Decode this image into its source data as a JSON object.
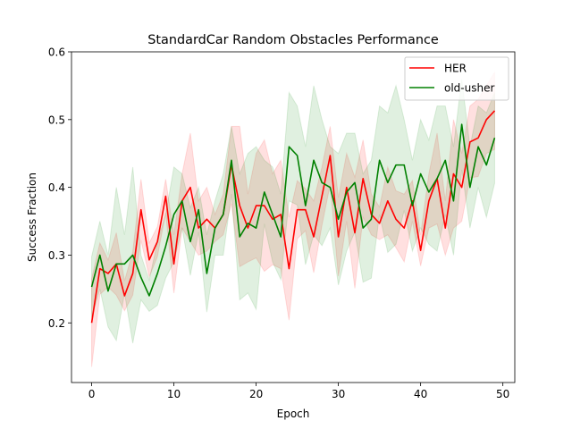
{
  "chart_data": {
    "type": "line",
    "title": "StandardCar Random Obstacles Performance",
    "xlabel": "Epoch",
    "ylabel": "Success Fraction",
    "xlim": [
      -2.45,
      51.45
    ],
    "ylim": [
      0.112,
      0.6
    ],
    "xticks": [
      0,
      10,
      20,
      30,
      40,
      50
    ],
    "xtick_labels": [
      "0",
      "10",
      "20",
      "30",
      "40",
      "50"
    ],
    "yticks": [
      0.2,
      0.3,
      0.4,
      0.5,
      0.6
    ],
    "ytick_labels": [
      "0.2",
      "0.3",
      "0.4",
      "0.5",
      "0.6"
    ],
    "grid": false,
    "legend_position": "top-right",
    "x": [
      0,
      1,
      2,
      3,
      4,
      5,
      6,
      7,
      8,
      9,
      10,
      11,
      12,
      13,
      14,
      15,
      16,
      17,
      18,
      19,
      20,
      21,
      22,
      23,
      24,
      25,
      26,
      27,
      28,
      29,
      30,
      31,
      32,
      33,
      34,
      35,
      36,
      37,
      38,
      39,
      40,
      41,
      42,
      43,
      44,
      45,
      46,
      47,
      48,
      49
    ],
    "series": [
      {
        "name": "HER",
        "color": "#ff0000",
        "values": [
          0.2,
          0.28,
          0.273,
          0.287,
          0.24,
          0.273,
          0.367,
          0.293,
          0.32,
          0.387,
          0.287,
          0.38,
          0.4,
          0.34,
          0.353,
          0.34,
          0.36,
          0.433,
          0.373,
          0.34,
          0.373,
          0.373,
          0.353,
          0.36,
          0.28,
          0.367,
          0.367,
          0.327,
          0.387,
          0.447,
          0.327,
          0.4,
          0.333,
          0.413,
          0.36,
          0.347,
          0.38,
          0.353,
          0.34,
          0.38,
          0.307,
          0.38,
          0.413,
          0.34,
          0.42,
          0.4,
          0.467,
          0.473,
          0.5,
          0.513
        ],
        "upper": [
          0.265,
          0.318,
          0.293,
          0.333,
          0.262,
          0.305,
          0.412,
          0.318,
          0.342,
          0.412,
          0.33,
          0.42,
          0.48,
          0.38,
          0.4,
          0.36,
          0.39,
          0.49,
          0.49,
          0.39,
          0.45,
          0.47,
          0.42,
          0.44,
          0.356,
          0.41,
          0.398,
          0.38,
          0.43,
          0.49,
          0.385,
          0.45,
          0.415,
          0.47,
          0.39,
          0.371,
          0.43,
          0.395,
          0.39,
          0.41,
          0.33,
          0.42,
          0.48,
          0.38,
          0.5,
          0.45,
          0.52,
          0.53,
          0.55,
          0.57
        ],
        "lower": [
          0.135,
          0.242,
          0.253,
          0.241,
          0.218,
          0.241,
          0.322,
          0.268,
          0.298,
          0.362,
          0.244,
          0.34,
          0.32,
          0.3,
          0.306,
          0.32,
          0.33,
          0.376,
          0.283,
          0.29,
          0.296,
          0.276,
          0.286,
          0.28,
          0.204,
          0.324,
          0.336,
          0.274,
          0.344,
          0.404,
          0.269,
          0.35,
          0.251,
          0.356,
          0.33,
          0.323,
          0.33,
          0.311,
          0.29,
          0.35,
          0.284,
          0.34,
          0.346,
          0.3,
          0.34,
          0.35,
          0.414,
          0.416,
          0.45,
          0.456
        ]
      },
      {
        "name": "old-usher",
        "color": "#008000",
        "values": [
          0.253,
          0.3,
          0.247,
          0.287,
          0.287,
          0.3,
          0.267,
          0.24,
          0.273,
          0.313,
          0.36,
          0.38,
          0.32,
          0.367,
          0.273,
          0.34,
          0.36,
          0.44,
          0.327,
          0.347,
          0.34,
          0.393,
          0.36,
          0.327,
          0.46,
          0.447,
          0.373,
          0.44,
          0.407,
          0.4,
          0.353,
          0.393,
          0.407,
          0.34,
          0.353,
          0.44,
          0.407,
          0.433,
          0.433,
          0.373,
          0.42,
          0.393,
          0.413,
          0.44,
          0.38,
          0.493,
          0.4,
          0.46,
          0.433,
          0.473
        ],
        "upper": [
          0.298,
          0.35,
          0.3,
          0.4,
          0.33,
          0.43,
          0.3,
          0.263,
          0.32,
          0.36,
          0.43,
          0.42,
          0.37,
          0.4,
          0.33,
          0.38,
          0.42,
          0.49,
          0.42,
          0.45,
          0.46,
          0.44,
          0.43,
          0.39,
          0.54,
          0.52,
          0.46,
          0.55,
          0.5,
          0.46,
          0.45,
          0.48,
          0.48,
          0.42,
          0.44,
          0.52,
          0.51,
          0.55,
          0.5,
          0.44,
          0.5,
          0.47,
          0.52,
          0.52,
          0.46,
          0.56,
          0.46,
          0.52,
          0.51,
          0.54
        ],
        "lower": [
          0.208,
          0.25,
          0.194,
          0.174,
          0.244,
          0.17,
          0.234,
          0.217,
          0.226,
          0.266,
          0.29,
          0.34,
          0.27,
          0.334,
          0.216,
          0.3,
          0.3,
          0.39,
          0.234,
          0.244,
          0.22,
          0.346,
          0.29,
          0.264,
          0.38,
          0.374,
          0.286,
          0.33,
          0.314,
          0.34,
          0.256,
          0.306,
          0.334,
          0.26,
          0.266,
          0.36,
          0.304,
          0.316,
          0.366,
          0.306,
          0.34,
          0.316,
          0.306,
          0.36,
          0.3,
          0.426,
          0.34,
          0.4,
          0.356,
          0.406
        ]
      }
    ]
  }
}
